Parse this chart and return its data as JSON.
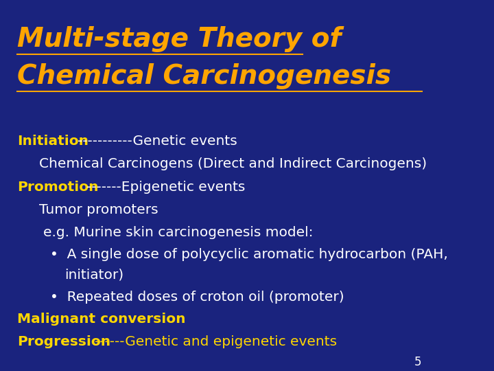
{
  "bg_color": "#1a237e",
  "title_line1": "Multi-stage Theory of",
  "title_line2": "Chemical Carcinogenesis",
  "title_color": "#FFA500",
  "title_fontsize": 28,
  "page_number": "5",
  "page_num_color": "#FFFFFF",
  "page_num_fontsize": 12
}
